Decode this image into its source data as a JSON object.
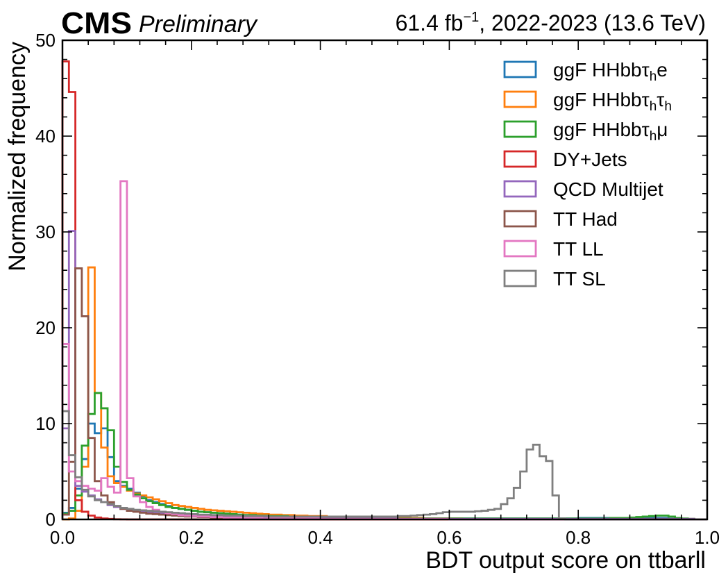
{
  "header": {
    "experiment": "CMS",
    "status": "Preliminary",
    "lumi_prefix": "61.4 fb",
    "lumi_exp": "−1",
    "lumi_suffix": ", 2022-2023 (13.6 TeV)"
  },
  "chart_data": {
    "type": "histogram-step",
    "xlabel": "BDT output score on ttbarll",
    "ylabel": "Normalized frequency",
    "xlim": [
      0,
      1
    ],
    "ylim": [
      0,
      50
    ],
    "xticks": [
      "0.0",
      "0.2",
      "0.4",
      "0.6",
      "0.8",
      "1.0"
    ],
    "yticks": [
      "0",
      "10",
      "20",
      "30",
      "40",
      "50"
    ],
    "bin_width": 0.01,
    "grid": false,
    "legend_position": "top-right",
    "series": [
      {
        "name": "ggF HHbbτhe",
        "legend": {
          "base": "ggF HHbbτ",
          "subs": [
            {
              "sub": "h",
              "after": "e"
            }
          ]
        },
        "color": "#1f77b4",
        "values": [
          0.7,
          1.2,
          3.2,
          6.3,
          10.0,
          9.0,
          9.5,
          6.5,
          4.0,
          3.5,
          3.2,
          2.8,
          2.4,
          2.0,
          1.8,
          1.6,
          1.4,
          1.2,
          1.1,
          1.0,
          0.9,
          0.8,
          0.75,
          0.7,
          0.65,
          0.6,
          0.55,
          0.5,
          0.45,
          0.45,
          0.4,
          0.4,
          0.35,
          0.35,
          0.35,
          0.3,
          0.3,
          0.3,
          0.3,
          0.3,
          0.25,
          0.25,
          0.25,
          0.25,
          0.2,
          0.2,
          0.2,
          0.2,
          0.2,
          0.2,
          0.2,
          0.2,
          0.15,
          0.15,
          0.15,
          0.15,
          0.1,
          0.1,
          0.1,
          0.1,
          0.1,
          0.1,
          0.1,
          0.1,
          0.1,
          0.1,
          0.1,
          0.1,
          0.1,
          0.1,
          0.1,
          0.1,
          0.1,
          0.1,
          0.1,
          0.1,
          0.1,
          0.1,
          0.1,
          0.1,
          0.15,
          0.15,
          0.15,
          0.15,
          0.15,
          0.15,
          0.15,
          0.15,
          0.15,
          0.2,
          0.2,
          0.2,
          0.15,
          0.15,
          0.1,
          0.1,
          0.05,
          0.05,
          0.0,
          0.0
        ]
      },
      {
        "name": "ggF HHbbτhτh",
        "legend": {
          "base": "ggF HHbbτ",
          "subs": [
            {
              "sub": "h",
              "after": "τ"
            },
            {
              "sub": "h",
              "after": ""
            }
          ]
        },
        "color": "#ff7f0e",
        "values": [
          0.0,
          0.1,
          0.9,
          5.5,
          26.3,
          13.2,
          7.5,
          4.5,
          3.8,
          3.4,
          3.0,
          2.7,
          2.5,
          2.3,
          2.1,
          1.9,
          1.7,
          1.5,
          1.4,
          1.3,
          1.2,
          1.1,
          1.0,
          0.95,
          0.9,
          0.85,
          0.8,
          0.75,
          0.7,
          0.65,
          0.6,
          0.55,
          0.5,
          0.5,
          0.45,
          0.45,
          0.4,
          0.4,
          0.35,
          0.35,
          0.35,
          0.3,
          0.3,
          0.3,
          0.3,
          0.25,
          0.25,
          0.25,
          0.2,
          0.2,
          0.2,
          0.2,
          0.15,
          0.15,
          0.15,
          0.15,
          0.1,
          0.1,
          0.1,
          0.1,
          0.1,
          0.1,
          0.05,
          0.05,
          0.05,
          0.05,
          0.05,
          0.05,
          0.05,
          0.05,
          0.05,
          0.05,
          0.05,
          0.05,
          0.05,
          0.05,
          0.05,
          0.05,
          0.05,
          0.05,
          0.05,
          0.05,
          0.05,
          0.05,
          0.05,
          0.05,
          0.05,
          0.05,
          0.05,
          0.05,
          0.05,
          0.05,
          0.05,
          0.05,
          0.05,
          0.05,
          0.05,
          0.05,
          0.0,
          0.0
        ]
      },
      {
        "name": "ggF HHbbτhμ",
        "legend": {
          "base": "ggF HHbbτ",
          "subs": [
            {
              "sub": "h",
              "after": "μ"
            }
          ]
        },
        "color": "#2ca02c",
        "values": [
          0.6,
          0.9,
          2.5,
          7.7,
          11.0,
          13.2,
          11.6,
          9.3,
          5.5,
          3.9,
          3.1,
          2.6,
          2.2,
          1.9,
          1.7,
          1.5,
          1.3,
          1.2,
          1.1,
          1.0,
          0.9,
          0.8,
          0.75,
          0.7,
          0.65,
          0.6,
          0.55,
          0.5,
          0.45,
          0.45,
          0.4,
          0.4,
          0.35,
          0.35,
          0.35,
          0.3,
          0.3,
          0.3,
          0.3,
          0.25,
          0.25,
          0.25,
          0.25,
          0.2,
          0.2,
          0.2,
          0.2,
          0.2,
          0.15,
          0.15,
          0.15,
          0.15,
          0.1,
          0.1,
          0.1,
          0.1,
          0.1,
          0.1,
          0.1,
          0.1,
          0.1,
          0.1,
          0.1,
          0.1,
          0.1,
          0.1,
          0.1,
          0.1,
          0.1,
          0.1,
          0.1,
          0.1,
          0.1,
          0.1,
          0.1,
          0.1,
          0.1,
          0.1,
          0.1,
          0.1,
          0.1,
          0.1,
          0.1,
          0.1,
          0.1,
          0.15,
          0.15,
          0.15,
          0.2,
          0.25,
          0.3,
          0.35,
          0.4,
          0.4,
          0.3,
          0.15,
          0.1,
          0.05,
          0.0,
          0.0
        ]
      },
      {
        "name": "DY+Jets",
        "color": "#d62728",
        "values": [
          47.8,
          44.6,
          2.0,
          0.8,
          0.4,
          0.2,
          0.1,
          0.05,
          0.02,
          0.01,
          0,
          0,
          0,
          0,
          0,
          0,
          0,
          0,
          0,
          0,
          0,
          0,
          0,
          0,
          0,
          0,
          0,
          0,
          0,
          0,
          0,
          0,
          0,
          0,
          0,
          0,
          0,
          0,
          0,
          0,
          0,
          0,
          0,
          0,
          0,
          0,
          0,
          0,
          0,
          0,
          0,
          0,
          0,
          0,
          0,
          0,
          0,
          0,
          0,
          0,
          0,
          0,
          0,
          0,
          0,
          0,
          0,
          0,
          0,
          0,
          0,
          0,
          0,
          0,
          0,
          0,
          0,
          0,
          0,
          0,
          0,
          0,
          0,
          0,
          0,
          0,
          0,
          0,
          0,
          0,
          0,
          0,
          0,
          0,
          0,
          0,
          0,
          0,
          0,
          0
        ]
      },
      {
        "name": "QCD Multijet",
        "color": "#9467bd",
        "values": [
          9.5,
          30.1,
          3.5,
          2.9,
          2.5,
          2.1,
          1.8,
          1.5,
          1.3,
          1.1,
          1.0,
          0.9,
          0.8,
          0.75,
          0.7,
          0.65,
          0.6,
          0.55,
          0.5,
          0.45,
          0.4,
          0.4,
          0.35,
          0.35,
          0.3,
          0.3,
          0.3,
          0.25,
          0.25,
          0.25,
          0.2,
          0.2,
          0.2,
          0.2,
          0.2,
          0.15,
          0.15,
          0.15,
          0.15,
          0.15,
          0.1,
          0.1,
          0.1,
          0.1,
          0.1,
          0.1,
          0.1,
          0.1,
          0.1,
          0.1,
          0.1,
          0.1,
          0.05,
          0.05,
          0.05,
          0.05,
          0.05,
          0.05,
          0.05,
          0.05,
          0.05,
          0.05,
          0.05,
          0.05,
          0.05,
          0.05,
          0.05,
          0.05,
          0.05,
          0.05,
          0.05,
          0.05,
          0.05,
          0.05,
          0.05,
          0.05,
          0.05,
          0.05,
          0.05,
          0.05,
          0.05,
          0.05,
          0.05,
          0.05,
          0.05,
          0.05,
          0.05,
          0.05,
          0.05,
          0.05,
          0.05,
          0.05,
          0.05,
          0.05,
          0.05,
          0.05,
          0.05,
          0.05,
          0.0,
          0.0
        ]
      },
      {
        "name": "TT Had",
        "color": "#8c564b",
        "values": [
          0.5,
          6.0,
          26.2,
          21.2,
          8.5,
          4.0,
          2.5,
          1.8,
          1.4,
          1.1,
          0.9,
          0.8,
          0.7,
          0.6,
          0.55,
          0.5,
          0.45,
          0.4,
          0.35,
          0.3,
          0.3,
          0.25,
          0.25,
          0.2,
          0.2,
          0.2,
          0.15,
          0.15,
          0.15,
          0.15,
          0.1,
          0.1,
          0.1,
          0.1,
          0.1,
          0.1,
          0.1,
          0.1,
          0.05,
          0.05,
          0.05,
          0.05,
          0.05,
          0.05,
          0.05,
          0.05,
          0.05,
          0.05,
          0.05,
          0.05,
          0.05,
          0.05,
          0.05,
          0.05,
          0.05,
          0.05,
          0.05,
          0.05,
          0.05,
          0.05,
          0,
          0,
          0,
          0,
          0,
          0,
          0,
          0,
          0,
          0,
          0,
          0,
          0,
          0,
          0,
          0,
          0,
          0,
          0,
          0,
          0,
          0,
          0,
          0,
          0,
          0,
          0,
          0,
          0,
          0,
          0,
          0,
          0,
          0,
          0,
          0,
          0,
          0,
          0,
          0
        ]
      },
      {
        "name": "TT LL",
        "color": "#e377c2",
        "values": [
          18.3,
          5.0,
          4.0,
          3.5,
          3.2,
          3.0,
          4.3,
          3.4,
          2.8,
          35.3,
          4.3,
          2.4,
          1.8,
          1.3,
          1.0,
          0.8,
          0.65,
          0.55,
          0.45,
          0.4,
          0.35,
          0.3,
          0.3,
          0.25,
          0.25,
          0.2,
          0.2,
          0.2,
          0.15,
          0.15,
          0.15,
          0.1,
          0.1,
          0.1,
          0.1,
          0.1,
          0.1,
          0.1,
          0.1,
          0.1,
          0.05,
          0.05,
          0.05,
          0.05,
          0.05,
          0.05,
          0.05,
          0.05,
          0.05,
          0.05,
          0.05,
          0.05,
          0.05,
          0.05,
          0.05,
          0.05,
          0.05,
          0.05,
          0.05,
          0.05,
          0,
          0,
          0,
          0,
          0,
          0,
          0,
          0,
          0,
          0,
          0,
          0,
          0,
          0,
          0,
          0,
          0,
          0,
          0,
          0,
          0,
          0,
          0,
          0,
          0,
          0,
          0,
          0,
          0,
          0,
          0,
          0,
          0,
          0,
          0,
          0,
          0,
          0,
          0,
          0
        ]
      },
      {
        "name": "TT SL",
        "color": "#7f7f7f",
        "values": [
          11.3,
          6.7,
          4.4,
          3.1,
          2.4,
          2.0,
          1.8,
          1.6,
          1.4,
          1.2,
          1.1,
          1.0,
          0.95,
          0.9,
          0.85,
          0.8,
          0.75,
          0.7,
          0.65,
          0.6,
          0.55,
          0.5,
          0.5,
          0.45,
          0.45,
          0.4,
          0.4,
          0.4,
          0.35,
          0.35,
          0.35,
          0.35,
          0.3,
          0.3,
          0.3,
          0.3,
          0.3,
          0.3,
          0.3,
          0.3,
          0.3,
          0.3,
          0.3,
          0.3,
          0.3,
          0.3,
          0.3,
          0.3,
          0.3,
          0.3,
          0.3,
          0.3,
          0.35,
          0.35,
          0.4,
          0.45,
          0.5,
          0.55,
          0.65,
          0.75,
          0.8,
          0.8,
          0.8,
          0.8,
          0.85,
          0.9,
          1.0,
          1.1,
          1.6,
          2.2,
          3.3,
          5.0,
          7.3,
          7.8,
          6.6,
          6.1,
          2.5,
          0.1,
          0.0,
          0.0,
          0,
          0,
          0,
          0,
          0,
          0,
          0,
          0,
          0,
          0,
          0,
          0,
          0,
          0,
          0,
          0,
          0,
          0,
          0,
          0
        ]
      }
    ]
  }
}
